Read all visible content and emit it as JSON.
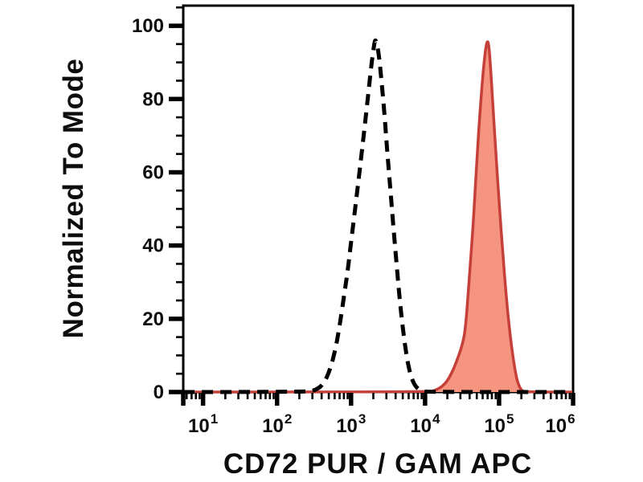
{
  "figure": {
    "description": "flow cytometry overlay histogram",
    "background_color": "#ffffff",
    "frame_color": "#000000"
  },
  "chart_data": {
    "type": "area",
    "subtype": "flow_cytometry_histogram",
    "title": "",
    "xlabel": "CD72 PUR / GAM APC",
    "ylabel": "Normalized To Mode",
    "x_scale": "log10",
    "x_domain": [
      5.4,
      1000000
    ],
    "x_major_ticks": [
      10,
      100,
      1000,
      10000,
      100000,
      1000000
    ],
    "x_tick_exponents": [
      1,
      2,
      3,
      4,
      5,
      6
    ],
    "x_minor_ticks": "multiples 2-9 within each decade",
    "y_domain": [
      0,
      105.5
    ],
    "y_major_ticks": [
      0,
      20,
      40,
      60,
      80,
      100
    ],
    "y_minor_step": 5,
    "grid": false,
    "legend": "none",
    "series": [
      {
        "name": "control-dashed-curve",
        "label": "unstained / control (black dashed)",
        "color": "#000000",
        "fill": "none",
        "stroke_width": 5,
        "dash": "14 9",
        "peak": {
          "x": 2100,
          "y": 96.5
        },
        "points": [
          [
            5.4,
            0
          ],
          [
            250,
            0
          ],
          [
            330,
            0.5
          ],
          [
            420,
            2
          ],
          [
            520,
            6
          ],
          [
            620,
            12
          ],
          [
            700,
            18
          ],
          [
            800,
            26
          ],
          [
            900,
            33
          ],
          [
            1000,
            41
          ],
          [
            1150,
            51
          ],
          [
            1300,
            60
          ],
          [
            1500,
            71
          ],
          [
            1700,
            81
          ],
          [
            1900,
            90
          ],
          [
            2050,
            95
          ],
          [
            2150,
            96.5
          ],
          [
            2350,
            93
          ],
          [
            2550,
            86
          ],
          [
            2800,
            77
          ],
          [
            3100,
            65
          ],
          [
            3500,
            52
          ],
          [
            4000,
            38
          ],
          [
            4500,
            26
          ],
          [
            5100,
            16
          ],
          [
            5800,
            8
          ],
          [
            6600,
            3.5
          ],
          [
            7600,
            1.2
          ],
          [
            9000,
            0.3
          ],
          [
            11000,
            0
          ],
          [
            1000000,
            0
          ]
        ]
      },
      {
        "name": "cd72-apc-filled-curve",
        "label": "CD72 PUR / GAM APC stained (red filled)",
        "color": "#c5403a",
        "fill": "#f5947f",
        "stroke_width": 3.5,
        "dash": null,
        "peak": {
          "x": 70000,
          "y": 96
        },
        "points": [
          [
            5.4,
            0
          ],
          [
            11000,
            0
          ],
          [
            14000,
            0.5
          ],
          [
            17000,
            1.5
          ],
          [
            20000,
            3
          ],
          [
            24000,
            6
          ],
          [
            28000,
            9.5
          ],
          [
            32000,
            13
          ],
          [
            35000,
            17
          ],
          [
            38000,
            26
          ],
          [
            42000,
            38
          ],
          [
            46000,
            50
          ],
          [
            50000,
            63
          ],
          [
            55000,
            76
          ],
          [
            60000,
            86
          ],
          [
            65000,
            93
          ],
          [
            69000,
            96
          ],
          [
            72500,
            95
          ],
          [
            76000,
            90
          ],
          [
            82000,
            79
          ],
          [
            90000,
            66
          ],
          [
            100000,
            52
          ],
          [
            112000,
            38
          ],
          [
            125000,
            26
          ],
          [
            140000,
            16
          ],
          [
            158000,
            8
          ],
          [
            175000,
            3
          ],
          [
            195000,
            0.8
          ],
          [
            215000,
            0
          ],
          [
            1000000,
            0
          ]
        ]
      }
    ]
  }
}
